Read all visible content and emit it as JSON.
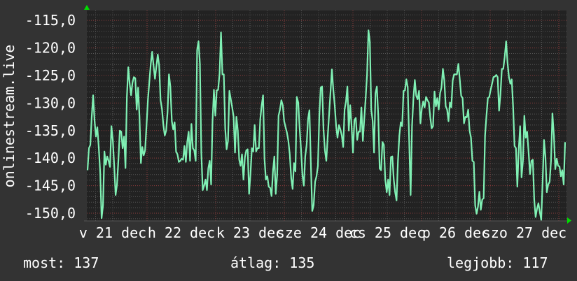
{
  "chart_data": {
    "type": "line",
    "title": "",
    "xlabel": "",
    "ylabel": "onlinestream.live",
    "ylim": [
      -151.4,
      -113.2
    ],
    "grid": true,
    "y_ticks": [
      "-115,0",
      "-120,0",
      "-125,0",
      "-130,0",
      "-135,0",
      "-140,0",
      "-145,0",
      "-150,0"
    ],
    "y_tick_values": [
      -115,
      -120,
      -125,
      -130,
      -135,
      -140,
      -145,
      -150
    ],
    "x_ticks": [
      "v 21 dec",
      "h 22 dec",
      "k 23 dec",
      "sze 24 dec",
      "cs 25 dec",
      "p 26 dec",
      "szo 27 dec"
    ],
    "colors": {
      "line": "#80f0b4",
      "background": "#333333",
      "plot_background": "#222222",
      "minor_grid": "#555555",
      "major_grid": "#8a3c3c",
      "arrow": "#00dd00"
    },
    "series": [
      {
        "values": [
          -142.2,
          -138.2,
          -137.6,
          -132.5,
          -128.6,
          -133.1,
          -136.1,
          -134.4,
          -138,
          -142.6,
          -150.9,
          -148.6,
          -138.8,
          -141.2,
          -139.7,
          -140.5,
          -141.6,
          -134.2,
          -136.7,
          -141.4,
          -146.7,
          -144.8,
          -140.3,
          -135,
          -135.2,
          -138.2,
          -136.1,
          -141.8,
          -128.9,
          -123.5,
          -126.5,
          -128.6,
          -126.3,
          -125.3,
          -125.5,
          -131.2,
          -127.2,
          -132.5,
          -140.9,
          -138,
          -139.5,
          -138.6,
          -134.2,
          -129.3,
          -126.1,
          -122.9,
          -120.7,
          -123.2,
          -125.6,
          -123.4,
          -121.2,
          -123.2,
          -129.5,
          -131.1,
          -134,
          -135.9,
          -135,
          -131.6,
          -124.8,
          -127,
          -133.3,
          -134.8,
          -133.5,
          -138.8,
          -139.3,
          -140.7,
          -140.5,
          -140.1,
          -140.3,
          -137.8,
          -140.7,
          -137.1,
          -135.2,
          -140.5,
          -133.8,
          -138.2,
          -138.6,
          -140.5,
          -120.4,
          -118.8,
          -122.9,
          -139,
          -145.8,
          -145,
          -143.9,
          -145.8,
          -141.8,
          -140.5,
          -144.8,
          -133.3,
          -127.6,
          -132.3,
          -127.7,
          -127.6,
          -124.6,
          -117.2,
          -124.8,
          -124.8,
          -134.6,
          -138.4,
          -136.9,
          -127.8,
          -129.3,
          -130.8,
          -132.5,
          -139,
          -132.5,
          -135,
          -140.3,
          -141.4,
          -139.3,
          -143.9,
          -139.9,
          -138.6,
          -138.4,
          -146.5,
          -142.9,
          -138.2,
          -138.8,
          -134,
          -138.8,
          -138.2,
          -138.2,
          -132.9,
          -130.4,
          -128.6,
          -140.1,
          -143.9,
          -143.3,
          -145.2,
          -145.4,
          -146.9,
          -142.4,
          -139.7,
          -146.5,
          -143.1,
          -132.3,
          -131.2,
          -129.5,
          -130.4,
          -133.3,
          -134.4,
          -135.4,
          -136.9,
          -139.3,
          -143.7,
          -145.6,
          -140.9,
          -142.4,
          -128.9,
          -129.9,
          -134.6,
          -138.4,
          -143.1,
          -145,
          -139.7,
          -137.6,
          -132.9,
          -131.3,
          -140.9,
          -149.6,
          -148.6,
          -144.3,
          -143.3,
          -141.4,
          -132.3,
          -127.2,
          -127,
          -134.8,
          -138.6,
          -140.5,
          -136.1,
          -132,
          -128,
          -123.9,
          -127.6,
          -130.4,
          -134.2,
          -136.3,
          -134,
          -134.8,
          -135.9,
          -138,
          -131.2,
          -129.7,
          -127,
          -135,
          -130.4,
          -134.2,
          -139,
          -133.1,
          -132.7,
          -136.7,
          -135.2,
          -135.2,
          -130.8,
          -136.9,
          -132.9,
          -129.1,
          -124.8,
          -116.8,
          -118.9,
          -131.2,
          -133.3,
          -139,
          -128.2,
          -127,
          -132.3,
          -141.9,
          -142.2,
          -137.1,
          -137.6,
          -143.9,
          -146.2,
          -143.9,
          -146.7,
          -139.8,
          -139.7,
          -143.9,
          -146.2,
          -147.7,
          -140.5,
          -135.9,
          -133.5,
          -134.2,
          -127.8,
          -127.7,
          -125.7,
          -127.2,
          -136.7,
          -146.7,
          -134.2,
          -129.1,
          -125.8,
          -128.7,
          -129.3,
          -127.8,
          -133.7,
          -131,
          -129.7,
          -130.8,
          -128.9,
          -129.5,
          -129.9,
          -132.5,
          -134.6,
          -134.2,
          -127.9,
          -130.6,
          -129.1,
          -131.2,
          -128.2,
          -127.2,
          -123.8,
          -125.9,
          -130.6,
          -131.2,
          -133.3,
          -129.9,
          -130.8,
          -125.9,
          -124.8,
          -124.8,
          -124.8,
          -122.9,
          -125.7,
          -128.7,
          -129.1,
          -133.7,
          -132.5,
          -132.6,
          -131.2,
          -135,
          -136.3,
          -140.5,
          -140.7,
          -148.6,
          -150.1,
          -148.8,
          -146.1,
          -149.4,
          -147.5,
          -147.3,
          -135.9,
          -132.3,
          -129.1,
          -128.9,
          -127.6,
          -126.5,
          -125.3,
          -125.2,
          -124.9,
          -125.3,
          -131.4,
          -128.4,
          -123.8,
          -123.8,
          -121.7,
          -118.8,
          -122.7,
          -125.3,
          -126.5,
          -125.7,
          -130.8,
          -137.8,
          -138.2,
          -145.2,
          -138.4,
          -134.2,
          -143.5,
          -140.5,
          -132.3,
          -136.3,
          -135.2,
          -138.8,
          -142.9,
          -140.5,
          -140.3,
          -147.5,
          -150.7,
          -149.2,
          -148.2,
          -149.8,
          -151.2,
          -144.3,
          -136.7,
          -139.7,
          -146.2,
          -144.8,
          -144.3,
          -140.5,
          -131.9,
          -135.9,
          -142,
          -140.1,
          -141.4,
          -141.5,
          -143.3,
          -142.2,
          -144.8,
          -137.1
        ]
      }
    ]
  },
  "summary": {
    "current_label": "most:",
    "current_value": "137",
    "average_label": "átlag:",
    "average_value": "135",
    "max_label": "legjobb:",
    "max_value": "117"
  }
}
